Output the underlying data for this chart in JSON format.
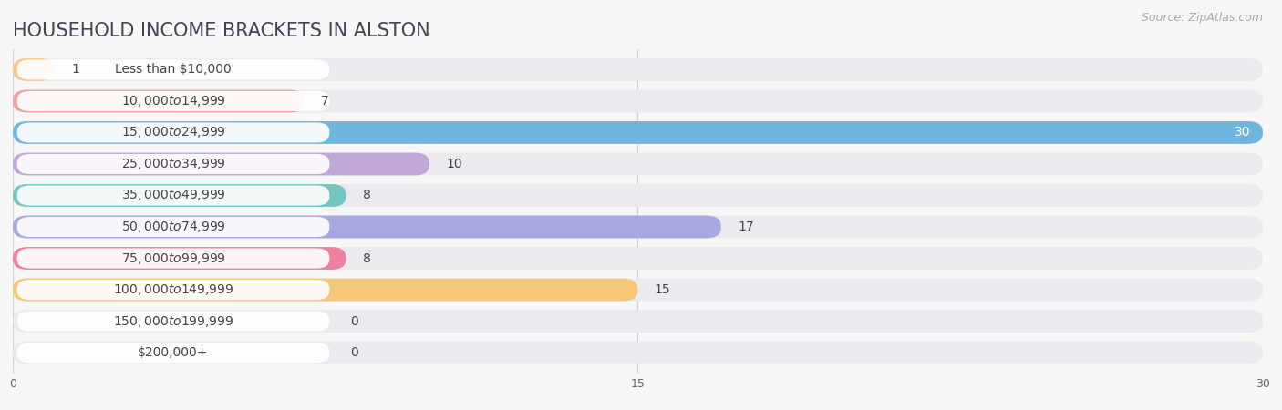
{
  "title": "HOUSEHOLD INCOME BRACKETS IN ALSTON",
  "source": "Source: ZipAtlas.com",
  "categories": [
    "Less than $10,000",
    "$10,000 to $14,999",
    "$15,000 to $24,999",
    "$25,000 to $34,999",
    "$35,000 to $49,999",
    "$50,000 to $74,999",
    "$75,000 to $99,999",
    "$100,000 to $149,999",
    "$150,000 to $199,999",
    "$200,000+"
  ],
  "values": [
    1,
    7,
    30,
    10,
    8,
    17,
    8,
    15,
    0,
    0
  ],
  "bar_colors": [
    "#f5c98a",
    "#f0a0a0",
    "#6eb5e0",
    "#c0a8d8",
    "#72c8c0",
    "#a8a8e0",
    "#f080a0",
    "#f5c878",
    "#f0b0b0",
    "#a8b8e8"
  ],
  "value_white": [
    false,
    false,
    true,
    false,
    false,
    false,
    false,
    false,
    false,
    false
  ],
  "xlim_max": 30,
  "xticks": [
    0,
    15,
    30
  ],
  "bg_color": "#f7f7f7",
  "bar_bg_color": "#ebebef",
  "label_pill_color": "#ffffff",
  "grid_color": "#d0d0d0",
  "title_color": "#444455",
  "title_fontsize": 15,
  "label_fontsize": 10,
  "value_fontsize": 10,
  "source_fontsize": 9
}
